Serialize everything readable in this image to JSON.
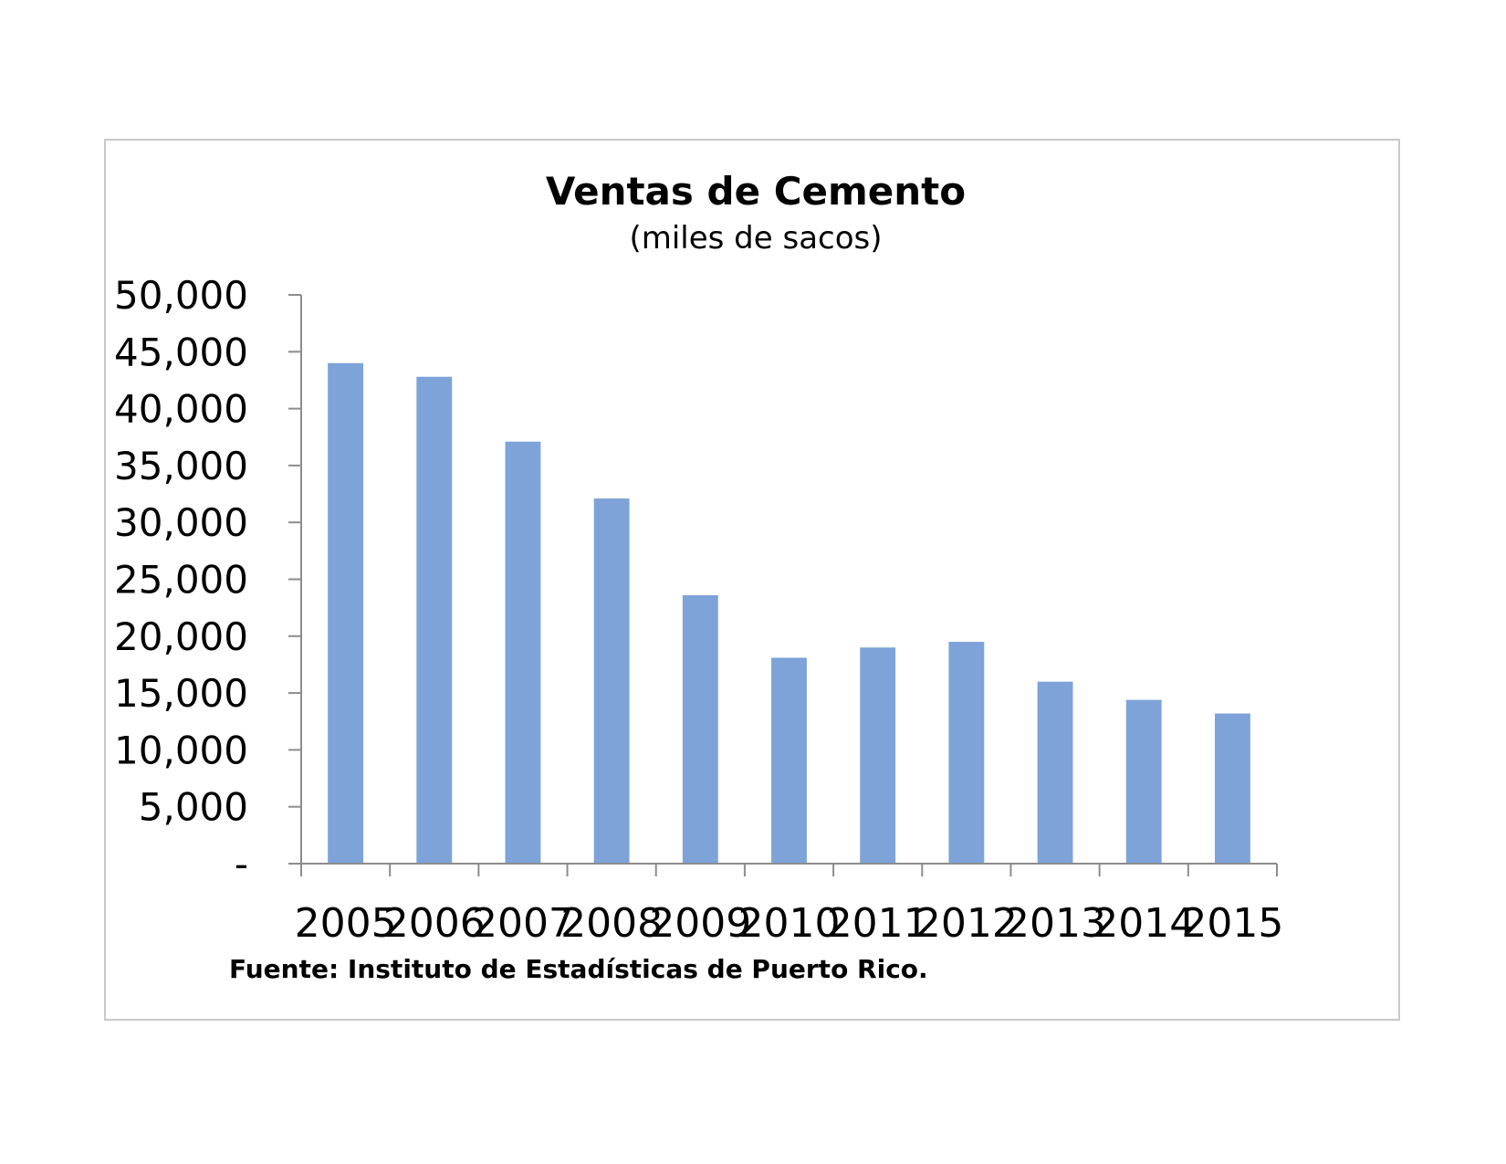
{
  "chart_data": {
    "type": "bar",
    "title": "Ventas de Cemento",
    "subtitle": "(miles de sacos)",
    "categories": [
      "2005",
      "2006",
      "2007",
      "2008",
      "2009",
      "2010",
      "2011",
      "2012",
      "2013",
      "2014",
      "2015"
    ],
    "values": [
      44000,
      42800,
      37100,
      32100,
      23600,
      18100,
      19000,
      19500,
      16000,
      14400,
      13200
    ],
    "ylim": [
      0,
      50000
    ],
    "yticks": [
      0,
      5000,
      10000,
      15000,
      20000,
      25000,
      30000,
      35000,
      40000,
      45000,
      50000
    ],
    "ytick_labels": [
      "-",
      "5,000",
      "10,000",
      "15,000",
      "20,000",
      "25,000",
      "30,000",
      "35,000",
      "40,000",
      "45,000",
      "50,000"
    ],
    "xlabel": "",
    "ylabel": "",
    "grid": false,
    "legend": "none",
    "bar_color": "#7da3d8",
    "source": "Fuente: Instituto de Estadísticas de Puerto Rico."
  }
}
